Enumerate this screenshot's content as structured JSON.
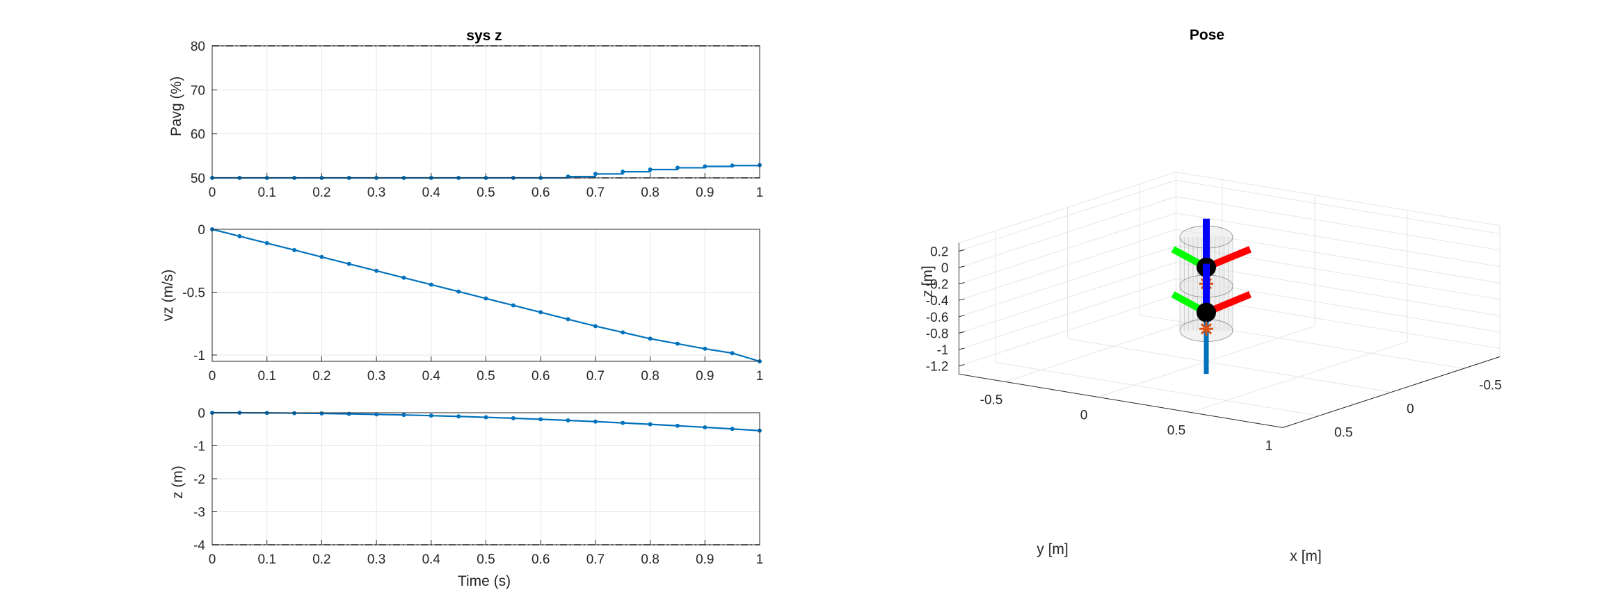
{
  "figure": {
    "colors": {
      "series": "#0072BD",
      "limit": "#000000",
      "grid": "#e6e6e6",
      "axis": "#262626",
      "x_axis_color": "#ff0000",
      "y_axis_color": "#00ff00",
      "z_axis_color": "#0000ff",
      "com_marker": "#D95319"
    }
  },
  "chart_data": [
    {
      "type": "line",
      "title": "sys z",
      "xlabel": "",
      "ylabel": "Pavg (%)",
      "xlim": [
        0,
        1
      ],
      "ylim": [
        50,
        80
      ],
      "xticks": [
        "0",
        "0.1",
        "0.2",
        "0.3",
        "0.4",
        "0.5",
        "0.6",
        "0.7",
        "0.8",
        "0.9",
        "1"
      ],
      "yticks": [
        "50",
        "60",
        "70",
        "80"
      ],
      "grid": true,
      "step": true,
      "limits": [
        80,
        50
      ],
      "x": [
        0,
        0.05,
        0.1,
        0.15,
        0.2,
        0.25,
        0.3,
        0.35,
        0.4,
        0.45,
        0.5,
        0.55,
        0.6,
        0.65,
        0.7,
        0.75,
        0.8,
        0.85,
        0.9,
        0.95,
        1.0
      ],
      "y": [
        50,
        50,
        50,
        50,
        50,
        50,
        50,
        50,
        50,
        50,
        50,
        50,
        50,
        50.3,
        50.9,
        51.4,
        51.9,
        52.3,
        52.6,
        52.8,
        52.9
      ]
    },
    {
      "type": "line",
      "title": "",
      "xlabel": "",
      "ylabel": "vz (m/s)",
      "xlim": [
        0,
        1
      ],
      "ylim": [
        -1.05,
        0
      ],
      "xticks": [
        "0",
        "0.1",
        "0.2",
        "0.3",
        "0.4",
        "0.5",
        "0.6",
        "0.7",
        "0.8",
        "0.9",
        "1"
      ],
      "yticks": [
        "-1",
        "-0.5",
        "0"
      ],
      "grid": true,
      "x": [
        0,
        0.05,
        0.1,
        0.15,
        0.2,
        0.25,
        0.3,
        0.35,
        0.4,
        0.45,
        0.5,
        0.55,
        0.6,
        0.65,
        0.7,
        0.75,
        0.8,
        0.85,
        0.9,
        0.95,
        1.0
      ],
      "y": [
        0,
        -0.055,
        -0.11,
        -0.165,
        -0.22,
        -0.275,
        -0.33,
        -0.385,
        -0.44,
        -0.495,
        -0.55,
        -0.605,
        -0.66,
        -0.715,
        -0.77,
        -0.82,
        -0.87,
        -0.91,
        -0.95,
        -0.985,
        -1.05
      ]
    },
    {
      "type": "line",
      "title": "",
      "xlabel": "Time (s)",
      "ylabel": "z (m)",
      "xlim": [
        0,
        1
      ],
      "ylim": [
        -4,
        0
      ],
      "xticks": [
        "0",
        "0.1",
        "0.2",
        "0.3",
        "0.4",
        "0.5",
        "0.6",
        "0.7",
        "0.8",
        "0.9",
        "1"
      ],
      "yticks": [
        "-4",
        "-3",
        "-2",
        "-1",
        "0"
      ],
      "grid": true,
      "limits": [
        -4
      ],
      "x": [
        0,
        0.05,
        0.1,
        0.15,
        0.2,
        0.25,
        0.3,
        0.35,
        0.4,
        0.45,
        0.5,
        0.55,
        0.6,
        0.65,
        0.7,
        0.75,
        0.8,
        0.85,
        0.9,
        0.95,
        1.0
      ],
      "y": [
        0,
        -0.001,
        -0.006,
        -0.012,
        -0.022,
        -0.034,
        -0.05,
        -0.067,
        -0.088,
        -0.111,
        -0.138,
        -0.166,
        -0.198,
        -0.232,
        -0.269,
        -0.308,
        -0.35,
        -0.395,
        -0.441,
        -0.49,
        -0.543
      ]
    },
    {
      "type": "scatter",
      "title": "Pose",
      "xlabel": "x [m]",
      "ylabel": "y [m]",
      "zlabel": "z [m]",
      "xlim": [
        -0.75,
        1
      ],
      "ylim": [
        -0.75,
        0.75
      ],
      "zlim": [
        -1.3,
        0.3
      ],
      "xticks": [
        -0.5,
        0,
        0.5,
        1
      ],
      "yticks": [
        -0.5,
        0,
        0.5
      ],
      "zticks": [
        -1.2,
        -1,
        -0.8,
        -0.6,
        -0.4,
        -0.2,
        0,
        0.2
      ],
      "grid": true,
      "bodies": [
        {
          "center": [
            0,
            0,
            -0.15
          ],
          "com_z": -0.35
        },
        {
          "center": [
            0,
            0,
            -0.7
          ],
          "com_z": -0.9
        }
      ],
      "cylinder": {
        "z_top": 0.22,
        "z_bottom": -0.92,
        "z_mid": -0.38
      },
      "rod": {
        "z_top": 0.12,
        "z_bottom": -1.45
      }
    }
  ]
}
